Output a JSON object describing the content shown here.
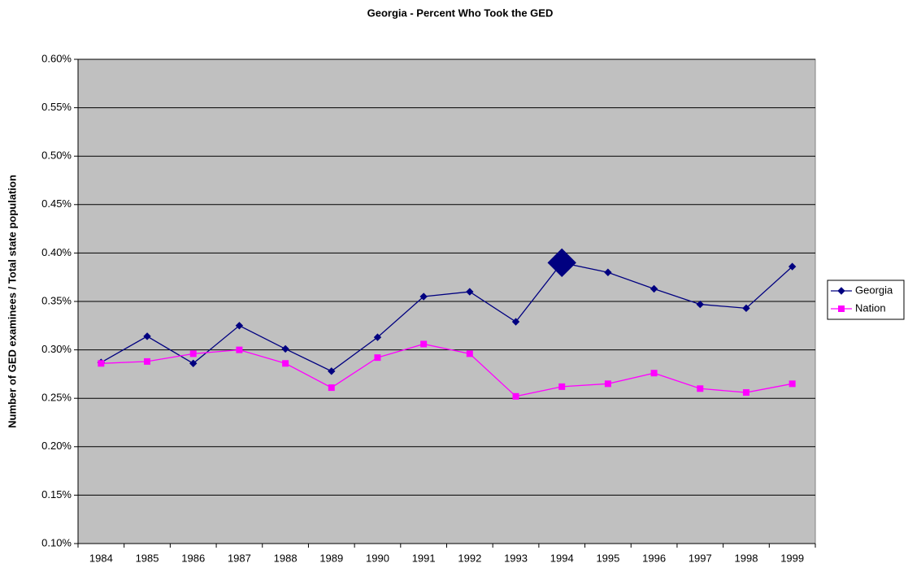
{
  "chart_data": {
    "type": "line",
    "title": "Georgia - Percent Who Took the GED",
    "y_label": "Number of GED examinees / Total state population",
    "categories": [
      "1984",
      "1985",
      "1986",
      "1987",
      "1988",
      "1989",
      "1990",
      "1991",
      "1992",
      "1993",
      "1994",
      "1995",
      "1996",
      "1997",
      "1998",
      "1999"
    ],
    "series": [
      {
        "name": "Georgia",
        "color": "#000080",
        "marker": "diamond",
        "values": [
          0.287,
          0.314,
          0.286,
          0.325,
          0.301,
          0.278,
          0.313,
          0.355,
          0.36,
          0.329,
          0.39,
          0.38,
          0.363,
          0.347,
          0.343,
          0.386
        ]
      },
      {
        "name": "Nation",
        "color": "#ff00ff",
        "marker": "square",
        "values": [
          0.286,
          0.288,
          0.296,
          0.3,
          0.286,
          0.261,
          0.292,
          0.306,
          0.296,
          0.252,
          0.262,
          0.265,
          0.276,
          0.26,
          0.256,
          0.265
        ]
      }
    ],
    "highlight": {
      "series": 0,
      "index": 10
    },
    "ylim": [
      0.1,
      0.6
    ],
    "yticks": [
      {
        "value": 0.1,
        "label": "0.10%"
      },
      {
        "value": 0.15,
        "label": "0.15%"
      },
      {
        "value": 0.2,
        "label": "0.20%"
      },
      {
        "value": 0.25,
        "label": "0.25%"
      },
      {
        "value": 0.3,
        "label": "0.30%"
      },
      {
        "value": 0.35,
        "label": "0.35%"
      },
      {
        "value": 0.4,
        "label": "0.40%"
      },
      {
        "value": 0.45,
        "label": "0.45%"
      },
      {
        "value": 0.5,
        "label": "0.50%"
      },
      {
        "value": 0.55,
        "label": "0.55%"
      },
      {
        "value": 0.6,
        "label": "0.60%"
      }
    ],
    "grid": true,
    "plot_background": "#c0c0c0",
    "legend": "right"
  }
}
